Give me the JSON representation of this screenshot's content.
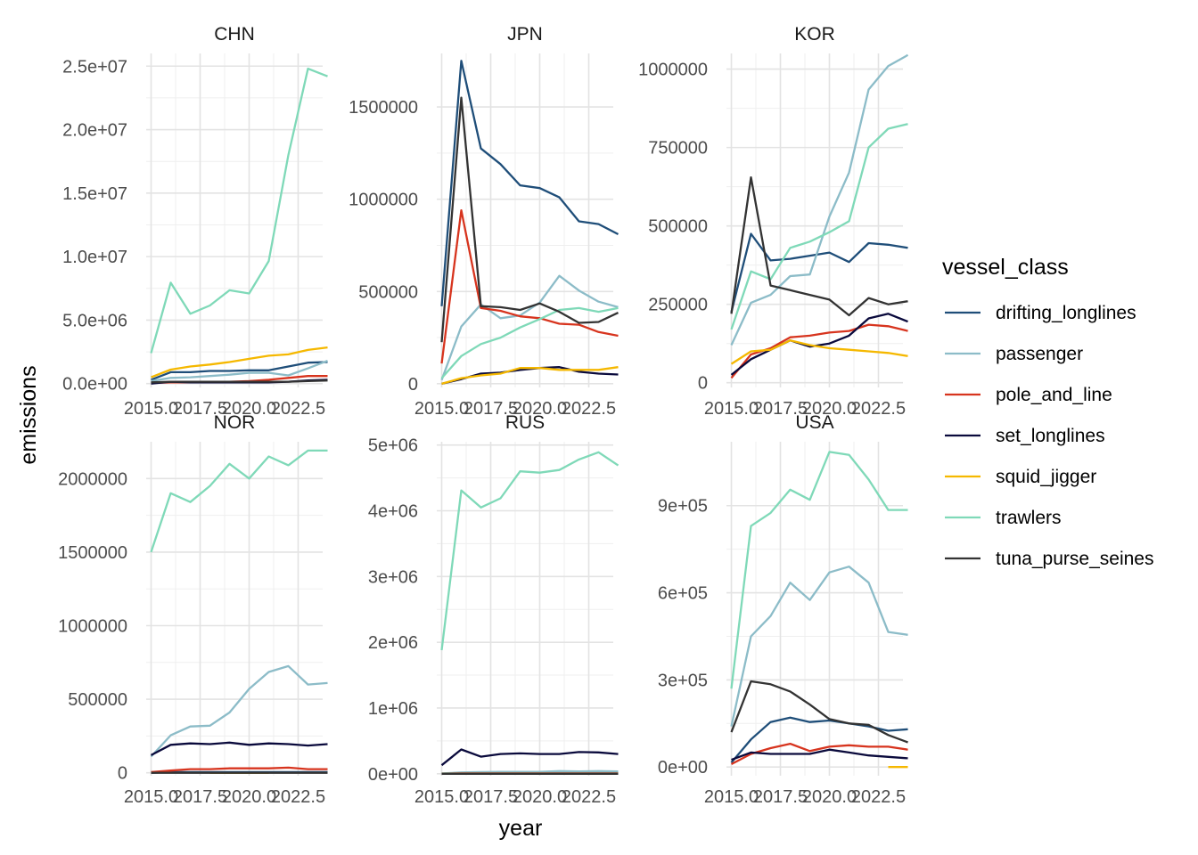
{
  "chart_data": {
    "type": "line",
    "layout": "facet-grid 2x3",
    "xlabel": "year",
    "ylabel": "emissions",
    "x_ticks": [
      2015,
      2017.5,
      2020,
      2022.5
    ],
    "x_tick_labels": [
      "2015.0",
      "2017.5",
      "2020.0",
      "2022.5"
    ],
    "x_range": [
      2014.75,
      2023.75
    ],
    "x": [
      2015,
      2016,
      2017,
      2018,
      2019,
      2020,
      2021,
      2022,
      2023,
      2024
    ],
    "grid": true,
    "legend": {
      "title": "vessel_class",
      "position": "right",
      "entries": [
        "drifting_longlines",
        "passenger",
        "pole_and_line",
        "set_longlines",
        "squid_jigger",
        "trawlers",
        "tuna_purse_seines"
      ]
    },
    "colors": {
      "drifting_longlines": "#1f4e79",
      "passenger": "#8cbcc8",
      "pole_and_line": "#d7341e",
      "set_longlines": "#0a0a3c",
      "squid_jigger": "#f5b800",
      "trawlers": "#7fd9b8",
      "tuna_purse_seines": "#333333"
    },
    "panels": [
      {
        "title": "CHN",
        "ylim": [
          -300000,
          26000000
        ],
        "y_ticks": [
          0,
          5000000,
          10000000,
          15000000,
          20000000,
          25000000
        ],
        "y_tick_labels": [
          "0.0e+00",
          "5.0e+06",
          "1.0e+07",
          "1.5e+07",
          "2.0e+07",
          "2.5e+07"
        ],
        "series": [
          {
            "name": "drifting_longlines",
            "values": [
              300000,
              900000,
              900000,
              1000000,
              1000000,
              1050000,
              1050000,
              1350000,
              1650000,
              1700000
            ]
          },
          {
            "name": "passenger",
            "values": [
              200000,
              450000,
              500000,
              600000,
              700000,
              850000,
              850000,
              650000,
              1200000,
              1800000
            ]
          },
          {
            "name": "pole_and_line",
            "values": [
              50000,
              100000,
              100000,
              120000,
              150000,
              200000,
              300000,
              450000,
              600000,
              600000
            ]
          },
          {
            "name": "set_longlines",
            "values": [
              0,
              150000,
              100000,
              100000,
              100000,
              100000,
              100000,
              150000,
              250000,
              300000
            ]
          },
          {
            "name": "squid_jigger",
            "values": [
              500000,
              1100000,
              1350000,
              1500000,
              1700000,
              1950000,
              2200000,
              2300000,
              2650000,
              2850000
            ]
          },
          {
            "name": "trawlers",
            "values": [
              2400000,
              7950000,
              5500000,
              6150000,
              7350000,
              7100000,
              9650000,
              18000000,
              24800000,
              24200000
            ]
          },
          {
            "name": "tuna_purse_seines",
            "values": [
              100000,
              150000,
              150000,
              150000,
              150000,
              150000,
              150000,
              150000,
              200000,
              250000
            ]
          }
        ]
      },
      {
        "title": "JPN",
        "ylim": [
          -20000,
          1790000
        ],
        "y_ticks": [
          0,
          500000,
          1000000,
          1500000
        ],
        "y_tick_labels": [
          "0",
          "500000",
          "1000000",
          "1500000"
        ],
        "series": [
          {
            "name": "drifting_longlines",
            "values": [
              420000,
              1750000,
              1275000,
              1190000,
              1075000,
              1060000,
              1010000,
              880000,
              865000,
              810000
            ]
          },
          {
            "name": "passenger",
            "values": [
              20000,
              310000,
              430000,
              355000,
              370000,
              440000,
              585000,
              505000,
              445000,
              415000
            ]
          },
          {
            "name": "pole_and_line",
            "values": [
              110000,
              940000,
              410000,
              395000,
              365000,
              355000,
              325000,
              320000,
              280000,
              260000
            ]
          },
          {
            "name": "set_longlines",
            "values": [
              0,
              25000,
              55000,
              60000,
              75000,
              85000,
              90000,
              65000,
              55000,
              50000
            ]
          },
          {
            "name": "squid_jigger",
            "values": [
              0,
              30000,
              45000,
              55000,
              85000,
              85000,
              75000,
              75000,
              75000,
              90000
            ]
          },
          {
            "name": "trawlers",
            "values": [
              30000,
              150000,
              215000,
              250000,
              305000,
              350000,
              400000,
              410000,
              390000,
              410000
            ]
          },
          {
            "name": "tuna_purse_seines",
            "values": [
              225000,
              1550000,
              420000,
              415000,
              400000,
              435000,
              390000,
              330000,
              335000,
              385000
            ]
          }
        ]
      },
      {
        "title": "KOR",
        "ylim": [
          -15000,
          1050000
        ],
        "y_ticks": [
          0,
          250000,
          500000,
          750000,
          1000000
        ],
        "y_tick_labels": [
          "0",
          "250000",
          "500000",
          "750000",
          "1000000"
        ],
        "series": [
          {
            "name": "drifting_longlines",
            "values": [
              225000,
              475000,
              390000,
              395000,
              405000,
              415000,
              385000,
              445000,
              440000,
              430000
            ]
          },
          {
            "name": "passenger",
            "values": [
              120000,
              255000,
              280000,
              340000,
              345000,
              530000,
              670000,
              935000,
              1010000,
              1045000
            ]
          },
          {
            "name": "pole_and_line",
            "values": [
              15000,
              90000,
              110000,
              145000,
              150000,
              160000,
              165000,
              185000,
              180000,
              165000
            ]
          },
          {
            "name": "set_longlines",
            "values": [
              25000,
              75000,
              105000,
              135000,
              115000,
              125000,
              150000,
              205000,
              220000,
              195000
            ]
          },
          {
            "name": "squid_jigger",
            "values": [
              60000,
              100000,
              105000,
              135000,
              120000,
              110000,
              105000,
              100000,
              95000,
              85000
            ]
          },
          {
            "name": "trawlers",
            "values": [
              170000,
              355000,
              330000,
              430000,
              450000,
              480000,
              515000,
              750000,
              810000,
              825000
            ]
          },
          {
            "name": "tuna_purse_seines",
            "values": [
              220000,
              655000,
              310000,
              295000,
              280000,
              265000,
              215000,
              270000,
              250000,
              260000
            ]
          }
        ]
      },
      {
        "title": "NOR",
        "ylim": [
          -20000,
          2250000
        ],
        "y_ticks": [
          0,
          500000,
          1000000,
          1500000,
          2000000
        ],
        "y_tick_labels": [
          "0",
          "500000",
          "1000000",
          "1500000",
          "2000000"
        ],
        "series": [
          {
            "name": "drifting_longlines",
            "values": [
              0,
              5000,
              5000,
              5000,
              5000,
              5000,
              5000,
              5000,
              5000,
              5000
            ]
          },
          {
            "name": "passenger",
            "values": [
              110000,
              255000,
              315000,
              320000,
              410000,
              570000,
              685000,
              725000,
              600000,
              610000
            ]
          },
          {
            "name": "pole_and_line",
            "values": [
              5000,
              15000,
              25000,
              25000,
              30000,
              30000,
              30000,
              35000,
              25000,
              25000
            ]
          },
          {
            "name": "set_longlines",
            "values": [
              120000,
              190000,
              200000,
              195000,
              205000,
              190000,
              200000,
              195000,
              185000,
              195000
            ]
          },
          {
            "name": "squid_jigger",
            "values": [
              null,
              null,
              null,
              0,
              0,
              0,
              0,
              null,
              null,
              null
            ]
          },
          {
            "name": "trawlers",
            "values": [
              1500000,
              1900000,
              1840000,
              1950000,
              2100000,
              2000000,
              2150000,
              2090000,
              2190000,
              2190000
            ]
          },
          {
            "name": "tuna_purse_seines",
            "values": [
              0,
              0,
              0,
              0,
              0,
              0,
              0,
              0,
              0,
              0
            ]
          }
        ]
      },
      {
        "title": "RUS",
        "ylim": [
          -30000,
          5050000
        ],
        "y_ticks": [
          0,
          1000000,
          2000000,
          3000000,
          4000000,
          5000000
        ],
        "y_tick_labels": [
          "0e+00",
          "1e+06",
          "2e+06",
          "3e+06",
          "4e+06",
          "5e+06"
        ],
        "series": [
          {
            "name": "drifting_longlines",
            "values": [
              0,
              5000,
              5000,
              5000,
              5000,
              5000,
              5000,
              5000,
              5000,
              5000
            ]
          },
          {
            "name": "passenger",
            "values": [
              5000,
              20000,
              25000,
              30000,
              30000,
              30000,
              40000,
              35000,
              40000,
              35000
            ]
          },
          {
            "name": "pole_and_line",
            "values": [
              0,
              5000,
              5000,
              5000,
              5000,
              5000,
              5000,
              5000,
              5000,
              5000
            ]
          },
          {
            "name": "set_longlines",
            "values": [
              130000,
              370000,
              260000,
              300000,
              310000,
              300000,
              300000,
              330000,
              325000,
              300000
            ]
          },
          {
            "name": "squid_jigger",
            "values": [
              0,
              0,
              0,
              0,
              0,
              0,
              0,
              0,
              0,
              0
            ]
          },
          {
            "name": "trawlers",
            "values": [
              1880000,
              4310000,
              4050000,
              4190000,
              4600000,
              4580000,
              4620000,
              4780000,
              4890000,
              4690000
            ]
          },
          {
            "name": "tuna_purse_seines",
            "values": [
              0,
              0,
              0,
              0,
              0,
              0,
              0,
              0,
              0,
              0
            ]
          }
        ]
      },
      {
        "title": "USA",
        "ylim": [
          -30000,
          1120000
        ],
        "y_ticks": [
          0,
          300000,
          600000,
          900000
        ],
        "y_tick_labels": [
          "0e+00",
          "3e+05",
          "6e+05",
          "9e+05"
        ],
        "series": [
          {
            "name": "drifting_longlines",
            "values": [
              15000,
              95000,
              155000,
              170000,
              155000,
              160000,
              150000,
              140000,
              125000,
              130000
            ]
          },
          {
            "name": "passenger",
            "values": [
              140000,
              450000,
              520000,
              635000,
              575000,
              670000,
              690000,
              635000,
              465000,
              455000
            ]
          },
          {
            "name": "pole_and_line",
            "values": [
              10000,
              45000,
              65000,
              80000,
              55000,
              70000,
              75000,
              70000,
              70000,
              60000
            ]
          },
          {
            "name": "set_longlines",
            "values": [
              25000,
              50000,
              45000,
              45000,
              45000,
              60000,
              50000,
              40000,
              35000,
              30000
            ]
          },
          {
            "name": "squid_jigger",
            "values": [
              null,
              null,
              null,
              null,
              null,
              null,
              null,
              null,
              0,
              0
            ]
          },
          {
            "name": "trawlers",
            "values": [
              270000,
              830000,
              875000,
              955000,
              920000,
              1085000,
              1075000,
              990000,
              885000,
              885000
            ]
          },
          {
            "name": "tuna_purse_seines",
            "values": [
              120000,
              295000,
              285000,
              260000,
              215000,
              165000,
              150000,
              145000,
              110000,
              85000
            ]
          }
        ]
      }
    ]
  }
}
